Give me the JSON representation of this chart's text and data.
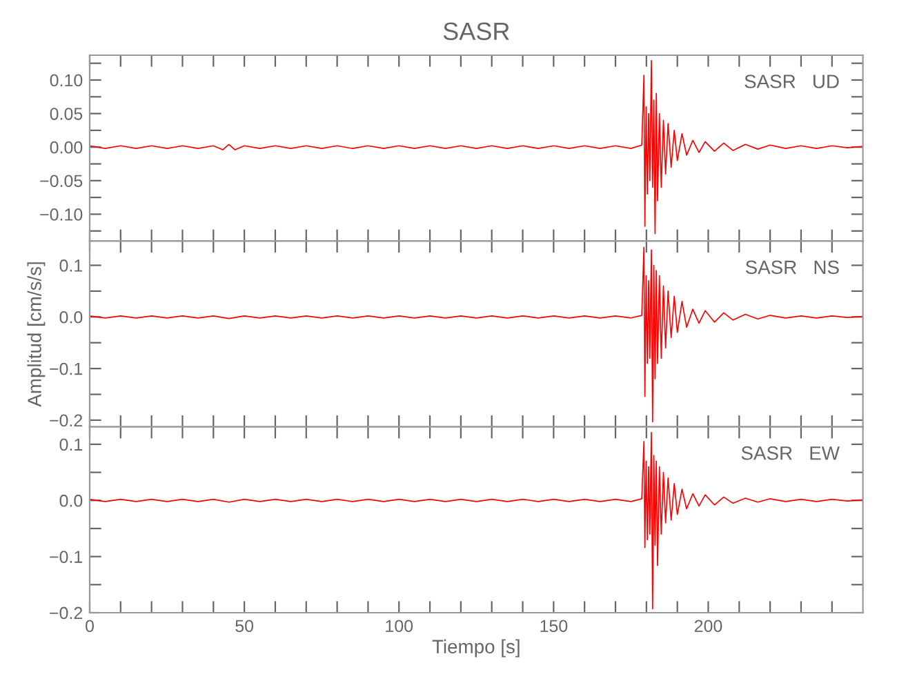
{
  "chart_data": [
    {
      "type": "line",
      "title": "SASR",
      "annotations": [
        "SASR   UD"
      ],
      "tick_labels": "y",
      "xlim": [
        0,
        250
      ],
      "ylim": [
        -0.14,
        0.137
      ],
      "xticks": [
        0,
        {
          "value": 10,
          "label": null
        },
        {
          "value": 20,
          "label": null
        },
        {
          "value": 30,
          "label": null
        },
        {
          "value": 40,
          "label": null
        },
        50,
        {
          "value": 60,
          "label": null
        },
        {
          "value": 70,
          "label": null
        },
        {
          "value": 80,
          "label": null
        },
        {
          "value": 90,
          "label": null
        },
        100,
        {
          "value": 110,
          "label": null
        },
        {
          "value": 120,
          "label": null
        },
        {
          "value": 130,
          "label": null
        },
        {
          "value": 140,
          "label": null
        },
        150,
        {
          "value": 160,
          "label": null
        },
        {
          "value": 170,
          "label": null
        },
        {
          "value": 180,
          "label": null
        },
        {
          "value": 190,
          "label": null
        },
        200,
        {
          "value": 210,
          "label": null
        },
        {
          "value": 220,
          "label": null
        },
        {
          "value": 230,
          "label": null
        },
        {
          "value": 240,
          "label": null
        }
      ],
      "yticks": [
        {
          "value": -0.125,
          "label": null
        },
        {
          "value": -0.1,
          "label": "−0.10"
        },
        {
          "value": -0.075,
          "label": null
        },
        {
          "value": -0.05,
          "label": "−0.05"
        },
        {
          "value": -0.025,
          "label": null
        },
        {
          "value": 0,
          "label": "0.00"
        },
        {
          "value": 0.025,
          "label": null
        },
        {
          "value": 0.05,
          "label": "0.05"
        },
        {
          "value": 0.075,
          "label": null
        },
        {
          "value": 0.1,
          "label": "0.10"
        },
        {
          "value": 0.125,
          "label": null
        }
      ],
      "series": [
        {
          "color": "#ff0000",
          "x": [
            0,
            5,
            10,
            15,
            20,
            25,
            30,
            35,
            40,
            43,
            45,
            47,
            50,
            55,
            60,
            65,
            70,
            75,
            80,
            85,
            90,
            95,
            100,
            105,
            110,
            115,
            120,
            125,
            130,
            135,
            140,
            145,
            150,
            155,
            160,
            165,
            170,
            175,
            178.5,
            179.2,
            179.5,
            179.9,
            180.3,
            180.7,
            181.1,
            181.6,
            182.0,
            182.4,
            182.8,
            183.2,
            183.6,
            184.2,
            184.8,
            185.5,
            186.2,
            187,
            188,
            189,
            190,
            191.5,
            193,
            195,
            197,
            199,
            202,
            205,
            208,
            212,
            216,
            220,
            225,
            230,
            235,
            240,
            245,
            250
          ],
          "values": [
            0.002,
            -0.002,
            0.002,
            -0.002,
            0.002,
            -0.002,
            0.002,
            -0.002,
            0.002,
            -0.004,
            0.004,
            -0.004,
            0.002,
            -0.002,
            0.002,
            -0.002,
            0.002,
            -0.002,
            0.002,
            -0.002,
            0.002,
            -0.002,
            0.002,
            -0.002,
            0.002,
            -0.002,
            0.002,
            -0.002,
            0.002,
            -0.002,
            0.002,
            -0.002,
            0.002,
            -0.002,
            0.002,
            -0.002,
            0.002,
            -0.002,
            0.003,
            0.107,
            -0.118,
            0.06,
            -0.07,
            0.05,
            -0.05,
            0.129,
            -0.06,
            0.07,
            -0.129,
            0.08,
            -0.08,
            0.05,
            -0.06,
            0.04,
            -0.04,
            0.035,
            -0.03,
            0.025,
            -0.02,
            0.02,
            -0.012,
            0.01,
            -0.008,
            0.008,
            -0.006,
            0.006,
            -0.005,
            0.004,
            -0.003,
            0.003,
            -0.002,
            0.002,
            -0.002,
            0.002,
            -0.001,
            0.001
          ]
        }
      ]
    },
    {
      "type": "line",
      "ylabel": "Amplitud [cm/s/s]",
      "annotations": [
        "SASR   NS"
      ],
      "tick_labels": "y",
      "xlim": [
        0,
        250
      ],
      "ylim": [
        -0.213,
        0.147
      ],
      "xticks": [
        0,
        {
          "value": 10,
          "label": null
        },
        {
          "value": 20,
          "label": null
        },
        {
          "value": 30,
          "label": null
        },
        {
          "value": 40,
          "label": null
        },
        50,
        {
          "value": 60,
          "label": null
        },
        {
          "value": 70,
          "label": null
        },
        {
          "value": 80,
          "label": null
        },
        {
          "value": 90,
          "label": null
        },
        100,
        {
          "value": 110,
          "label": null
        },
        {
          "value": 120,
          "label": null
        },
        {
          "value": 130,
          "label": null
        },
        {
          "value": 140,
          "label": null
        },
        150,
        {
          "value": 160,
          "label": null
        },
        {
          "value": 170,
          "label": null
        },
        {
          "value": 180,
          "label": null
        },
        {
          "value": 190,
          "label": null
        },
        200,
        {
          "value": 210,
          "label": null
        },
        {
          "value": 220,
          "label": null
        },
        {
          "value": 230,
          "label": null
        },
        {
          "value": 240,
          "label": null
        }
      ],
      "yticks": [
        {
          "value": -0.2,
          "label": "−0.2"
        },
        {
          "value": -0.15,
          "label": null
        },
        {
          "value": -0.1,
          "label": "−0.1"
        },
        {
          "value": -0.05,
          "label": null
        },
        {
          "value": 0,
          "label": "0.0"
        },
        {
          "value": 0.05,
          "label": null
        },
        {
          "value": 0.1,
          "label": "0.1"
        }
      ],
      "series": [
        {
          "color": "#ff0000",
          "x": [
            0,
            5,
            10,
            15,
            20,
            25,
            30,
            35,
            40,
            45,
            50,
            55,
            60,
            65,
            70,
            75,
            80,
            85,
            90,
            95,
            100,
            105,
            110,
            115,
            120,
            125,
            130,
            135,
            140,
            145,
            150,
            155,
            160,
            165,
            170,
            175,
            178.5,
            179.2,
            179.5,
            179.9,
            180.3,
            180.7,
            181.1,
            181.6,
            182.0,
            182.4,
            182.8,
            183.2,
            183.6,
            184.2,
            184.8,
            185.5,
            186.2,
            187,
            188,
            189,
            190,
            191.5,
            193,
            195,
            197,
            199,
            202,
            205,
            208,
            212,
            216,
            220,
            225,
            230,
            235,
            240,
            245,
            250
          ],
          "values": [
            0.002,
            -0.002,
            0.002,
            -0.002,
            0.002,
            -0.002,
            0.002,
            -0.002,
            0.002,
            -0.003,
            0.002,
            -0.002,
            0.002,
            -0.002,
            0.002,
            -0.002,
            0.002,
            -0.002,
            0.002,
            -0.002,
            0.002,
            -0.002,
            0.002,
            -0.002,
            0.002,
            -0.002,
            0.002,
            -0.002,
            0.002,
            -0.002,
            0.002,
            -0.002,
            0.002,
            -0.002,
            0.002,
            -0.002,
            0.003,
            0.135,
            -0.154,
            0.08,
            -0.09,
            0.07,
            -0.08,
            0.13,
            -0.203,
            0.1,
            -0.12,
            0.09,
            -0.09,
            0.08,
            -0.08,
            0.06,
            -0.06,
            0.05,
            -0.04,
            0.04,
            -0.03,
            0.03,
            -0.02,
            0.015,
            -0.012,
            0.012,
            -0.01,
            0.008,
            -0.006,
            0.005,
            -0.004,
            0.003,
            -0.002,
            0.002,
            -0.002,
            0.002,
            -0.001,
            0.001
          ]
        }
      ]
    },
    {
      "type": "line",
      "xlabel": "Tiempo [s]",
      "annotations": [
        "SASR   EW"
      ],
      "xlim": [
        0,
        250
      ],
      "ylim": [
        -0.2,
        0.131
      ],
      "xticks": [
        0,
        {
          "value": 10,
          "label": null
        },
        {
          "value": 20,
          "label": null
        },
        {
          "value": 30,
          "label": null
        },
        {
          "value": 40,
          "label": null
        },
        50,
        {
          "value": 60,
          "label": null
        },
        {
          "value": 70,
          "label": null
        },
        {
          "value": 80,
          "label": null
        },
        {
          "value": 90,
          "label": null
        },
        100,
        {
          "value": 110,
          "label": null
        },
        {
          "value": 120,
          "label": null
        },
        {
          "value": 130,
          "label": null
        },
        {
          "value": 140,
          "label": null
        },
        150,
        {
          "value": 160,
          "label": null
        },
        {
          "value": 170,
          "label": null
        },
        {
          "value": 180,
          "label": null
        },
        {
          "value": 190,
          "label": null
        },
        200,
        {
          "value": 210,
          "label": null
        },
        {
          "value": 220,
          "label": null
        },
        {
          "value": 230,
          "label": null
        },
        {
          "value": 240,
          "label": null
        }
      ],
      "yticks": [
        {
          "value": -0.2,
          "label": "−0.2"
        },
        {
          "value": -0.15,
          "label": null
        },
        {
          "value": -0.1,
          "label": "−0.1"
        },
        {
          "value": -0.05,
          "label": null
        },
        {
          "value": 0,
          "label": "0.0"
        },
        {
          "value": 0.05,
          "label": null
        },
        {
          "value": 0.1,
          "label": "0.1"
        }
      ],
      "series": [
        {
          "color": "#ff0000",
          "x": [
            0,
            5,
            10,
            15,
            20,
            25,
            30,
            35,
            40,
            45,
            50,
            55,
            60,
            65,
            70,
            75,
            80,
            85,
            90,
            95,
            100,
            105,
            110,
            115,
            120,
            125,
            130,
            135,
            140,
            145,
            150,
            155,
            160,
            165,
            170,
            175,
            178.5,
            179.2,
            179.5,
            179.9,
            180.3,
            180.7,
            181.1,
            181.6,
            182.0,
            182.4,
            182.8,
            183.2,
            183.6,
            184.2,
            184.8,
            185.5,
            186.2,
            187,
            188,
            189,
            190,
            191.5,
            193,
            195,
            197,
            199,
            202,
            205,
            208,
            212,
            216,
            220,
            225,
            230,
            235,
            240,
            245,
            250
          ],
          "values": [
            0.002,
            -0.002,
            0.002,
            -0.002,
            0.002,
            -0.002,
            0.002,
            -0.002,
            0.002,
            -0.003,
            0.002,
            -0.002,
            0.002,
            -0.002,
            0.002,
            -0.002,
            0.002,
            -0.002,
            0.002,
            -0.002,
            0.002,
            -0.002,
            0.002,
            -0.002,
            0.002,
            -0.002,
            0.002,
            -0.002,
            0.002,
            -0.002,
            0.002,
            -0.002,
            0.002,
            -0.002,
            0.002,
            -0.002,
            0.003,
            0.105,
            -0.084,
            0.07,
            -0.07,
            0.06,
            -0.06,
            0.121,
            -0.193,
            0.08,
            -0.08,
            0.07,
            -0.116,
            0.06,
            -0.06,
            0.05,
            -0.04,
            0.04,
            -0.035,
            0.03,
            -0.025,
            0.02,
            -0.015,
            0.012,
            -0.01,
            0.01,
            -0.008,
            0.006,
            -0.005,
            0.004,
            -0.003,
            0.003,
            -0.002,
            0.002,
            -0.002,
            0.002,
            -0.001,
            0.001
          ]
        }
      ]
    }
  ]
}
